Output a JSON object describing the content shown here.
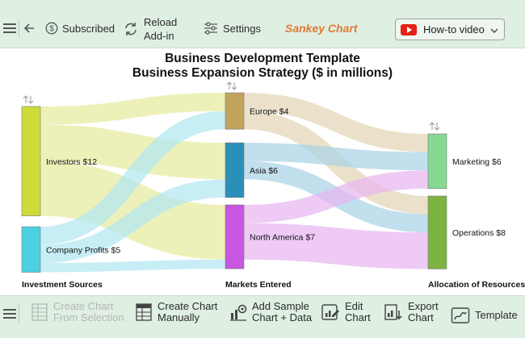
{
  "toolbar": {
    "subscribed_label": "Subscribed",
    "reload_line1": "Reload",
    "reload_line2": "Add-in",
    "settings_label": "Settings",
    "brand_label": "Sankey Chart",
    "howto_label": "How-to video"
  },
  "chart": {
    "title_line1": "Business Development Template",
    "title_line2": "Business Expansion Strategy ($ in millions)"
  },
  "chart_data": {
    "type": "sankey",
    "title": "Business Development Template",
    "subtitle": "Business Expansion Strategy ($ in millions)",
    "columns": [
      "Investment Sources",
      "Markets Entered",
      "Allocation of Resources"
    ],
    "nodes": [
      {
        "id": "investors",
        "label": "Investors $12",
        "column": 0,
        "value": 12,
        "color": "#cddc39"
      },
      {
        "id": "profits",
        "label": "Company Profits $5",
        "column": 0,
        "value": 5,
        "color": "#4dd0e1"
      },
      {
        "id": "europe",
        "label": "Europe $4",
        "column": 1,
        "value": 4,
        "color": "#c2a35b"
      },
      {
        "id": "asia",
        "label": "Asia $6",
        "column": 1,
        "value": 6,
        "color": "#2b90b8"
      },
      {
        "id": "na",
        "label": "North America $7",
        "column": 1,
        "value": 7,
        "color": "#c856e0"
      },
      {
        "id": "marketing",
        "label": "Marketing $6",
        "column": 2,
        "value": 6,
        "color": "#86d993"
      },
      {
        "id": "operations",
        "label": "Operations $8",
        "column": 2,
        "value": 8,
        "color": "#7cb342"
      }
    ],
    "links": [
      {
        "source": "investors",
        "target": "europe",
        "value": 2,
        "color": "#e6ec9e"
      },
      {
        "source": "investors",
        "target": "asia",
        "value": 4,
        "color": "#e6ec9e"
      },
      {
        "source": "investors",
        "target": "na",
        "value": 6,
        "color": "#e6ec9e"
      },
      {
        "source": "profits",
        "target": "europe",
        "value": 2,
        "color": "#b3e8f1"
      },
      {
        "source": "profits",
        "target": "asia",
        "value": 2,
        "color": "#b3e8f1"
      },
      {
        "source": "profits",
        "target": "na",
        "value": 1,
        "color": "#b3e8f1"
      },
      {
        "source": "europe",
        "target": "marketing",
        "value": 2,
        "color": "#e3d6b6"
      },
      {
        "source": "europe",
        "target": "operations",
        "value": 2,
        "color": "#e3d6b6"
      },
      {
        "source": "asia",
        "target": "marketing",
        "value": 2,
        "color": "#a9d3e4"
      },
      {
        "source": "asia",
        "target": "operations",
        "value": 2,
        "color": "#a9d3e4"
      },
      {
        "source": "na",
        "target": "marketing",
        "value": 2,
        "color": "#e8b6f1"
      },
      {
        "source": "na",
        "target": "operations",
        "value": 4,
        "color": "#e8b6f1"
      }
    ]
  },
  "bottom": {
    "create_from_selection_line1": "Create Chart",
    "create_from_selection_line2": "From Selection",
    "create_manually_line1": "Create Chart",
    "create_manually_line2": "Manually",
    "add_sample_line1": "Add Sample",
    "add_sample_line2": "Chart + Data",
    "edit_line1": "Edit",
    "edit_line2": "Chart",
    "export_line1": "Export",
    "export_line2": "Chart",
    "template_label": "Template"
  }
}
